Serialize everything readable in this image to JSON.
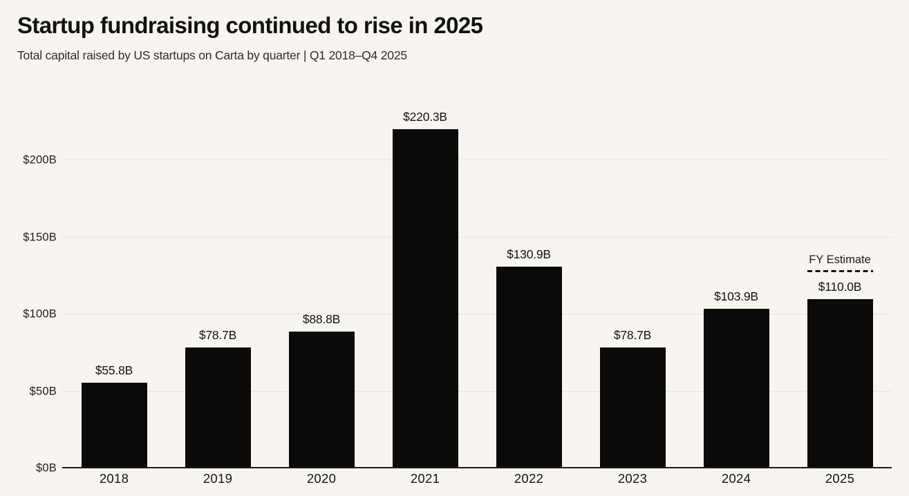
{
  "header": {
    "title": "Startup fundraising continued to rise in 2025",
    "subtitle": "Total capital raised by US startups on Carta by quarter | Q1 2018–Q4 2025"
  },
  "chart_data": {
    "type": "bar",
    "title": "Startup fundraising continued to rise in 2025",
    "subtitle": "Total capital raised by US startups on Carta by quarter | Q1 2018–Q4 2025",
    "categories": [
      "2018",
      "2019",
      "2020",
      "2021",
      "2022",
      "2023",
      "2024",
      "2025"
    ],
    "values": [
      55.8,
      78.7,
      88.8,
      220.3,
      130.9,
      78.7,
      103.9,
      110.0
    ],
    "value_labels": [
      "$55.8B",
      "$78.7B",
      "$88.8B",
      "$220.3B",
      "$130.9B",
      "$78.7B",
      "$103.9B",
      "$110.0B"
    ],
    "xlabel": "",
    "ylabel": "",
    "ylim": [
      0,
      237
    ],
    "yticks": [
      {
        "value": 0,
        "label": "$0B"
      },
      {
        "value": 50,
        "label": "$50B"
      },
      {
        "value": 100,
        "label": "$100B"
      },
      {
        "value": 150,
        "label": "$150B"
      },
      {
        "value": 200,
        "label": "$200B"
      }
    ],
    "grid": "horizontal",
    "legend": "none",
    "bar_color": "#0a0a0a",
    "background_color": "#f8f5f1",
    "annotation": {
      "text": "FY Estimate",
      "applies_to_category": "2025"
    }
  }
}
